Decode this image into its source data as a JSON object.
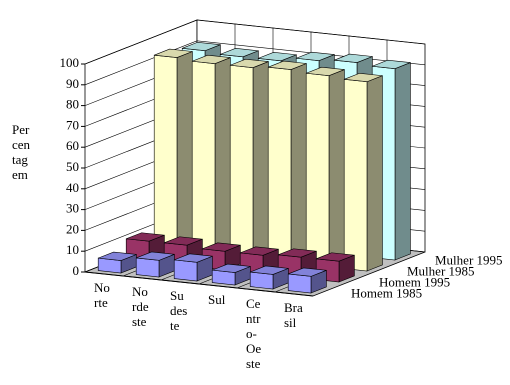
{
  "chart_data": {
    "type": "bar3d",
    "y_label": "Per\ncen\ntag\nem",
    "categories": [
      "No\nrte",
      "No\nrde\nste",
      "Su\ndes\nte",
      "Sul",
      "Ce\nntr\no-\nOe\nste",
      "Bra\nsil"
    ],
    "series": [
      {
        "name": "Homem 1985",
        "color": "#9999ff",
        "values": [
          6,
          8,
          9,
          6,
          7,
          8
        ]
      },
      {
        "name": "Homem 1995",
        "color": "#993366",
        "values": [
          10,
          10,
          9,
          9,
          10,
          10
        ]
      },
      {
        "name": "Mulher 1985",
        "color": "#ffffcc",
        "values": [
          93,
          92,
          92,
          93,
          92,
          91
        ]
      },
      {
        "name": "Mulher 1995",
        "color": "#ccffff",
        "values": [
          91,
          90,
          90,
          92,
          93,
          92
        ]
      }
    ],
    "ylim": [
      0,
      100
    ],
    "yticks": [
      0,
      10,
      20,
      30,
      40,
      50,
      60,
      70,
      80,
      90,
      100
    ],
    "grid": true
  }
}
